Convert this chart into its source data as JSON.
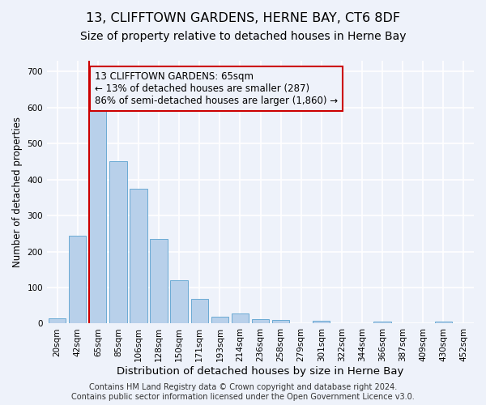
{
  "title": "13, CLIFFTOWN GARDENS, HERNE BAY, CT6 8DF",
  "subtitle": "Size of property relative to detached houses in Herne Bay",
  "xlabel": "Distribution of detached houses by size in Herne Bay",
  "ylabel": "Number of detached properties",
  "bar_labels": [
    "20sqm",
    "42sqm",
    "65sqm",
    "85sqm",
    "106sqm",
    "128sqm",
    "150sqm",
    "171sqm",
    "193sqm",
    "214sqm",
    "236sqm",
    "258sqm",
    "279sqm",
    "301sqm",
    "322sqm",
    "344sqm",
    "366sqm",
    "387sqm",
    "409sqm",
    "430sqm",
    "452sqm"
  ],
  "bar_values": [
    15,
    245,
    590,
    450,
    375,
    235,
    120,
    68,
    18,
    28,
    12,
    10,
    0,
    8,
    0,
    0,
    5,
    0,
    0,
    5,
    0
  ],
  "bar_color": "#b8d0ea",
  "bar_edge_color": "#6aaad4",
  "reference_line_x": 2,
  "reference_line_color": "#cc0000",
  "annotation_line1": "13 CLIFFTOWN GARDENS: 65sqm",
  "annotation_line2": "← 13% of detached houses are smaller (287)",
  "annotation_line3": "86% of semi-detached houses are larger (1,860) →",
  "annotation_box_color": "#cc0000",
  "ylim": [
    0,
    730
  ],
  "yticks": [
    0,
    100,
    200,
    300,
    400,
    500,
    600,
    700
  ],
  "footer_text": "Contains HM Land Registry data © Crown copyright and database right 2024.\nContains public sector information licensed under the Open Government Licence v3.0.",
  "background_color": "#eef2fa",
  "grid_color": "#ffffff",
  "title_fontsize": 11.5,
  "subtitle_fontsize": 10,
  "xlabel_fontsize": 9.5,
  "ylabel_fontsize": 8.5,
  "tick_fontsize": 7.5,
  "annotation_fontsize": 8.5,
  "footer_fontsize": 7
}
